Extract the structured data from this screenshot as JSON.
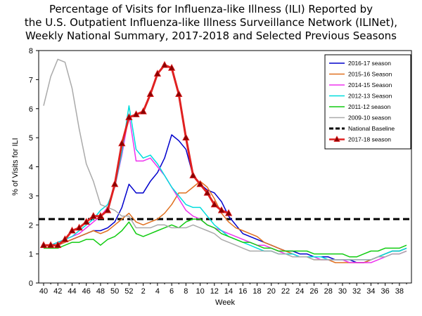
{
  "chart_data": {
    "type": "line",
    "title_lines": [
      "Percentage of Visits for Influenza-like Illness (ILI) Reported by",
      "the U.S. Outpatient Influenza-like Illness Surveillance Network (ILINet),",
      "Weekly National Summary, 2017-2018 and Selected Previous Seasons"
    ],
    "xlabel": "Week",
    "ylabel": "% of Visits for ILI",
    "ylim": [
      0,
      8
    ],
    "yticks": [
      0,
      1,
      2,
      3,
      4,
      5,
      6,
      7,
      8
    ],
    "xtick_labels": [
      "40",
      "42",
      "44",
      "46",
      "48",
      "50",
      "52",
      "2",
      "4",
      "6",
      "8",
      "10",
      "12",
      "14",
      "16",
      "18",
      "20",
      "22",
      "24",
      "26",
      "28",
      "30",
      "32",
      "34",
      "36",
      "38"
    ],
    "x_weeks": [
      40,
      41,
      42,
      43,
      44,
      45,
      46,
      47,
      48,
      49,
      50,
      51,
      52,
      1,
      2,
      3,
      4,
      5,
      6,
      7,
      8,
      9,
      10,
      11,
      12,
      13,
      14,
      15,
      16,
      17,
      18,
      19,
      20,
      21,
      22,
      23,
      24,
      25,
      26,
      27,
      28,
      29,
      30,
      31,
      32,
      33,
      34,
      35,
      36,
      37,
      38,
      39
    ],
    "grid": false,
    "legend_position": "top-right",
    "baseline": {
      "name": "National Baseline",
      "value": 2.2,
      "color": "#000000"
    },
    "series": [
      {
        "name": "2016-17 season",
        "color": "#0000cc",
        "values": [
          1.3,
          1.3,
          1.3,
          1.4,
          1.5,
          1.6,
          1.7,
          1.8,
          1.8,
          1.9,
          2.1,
          2.6,
          3.4,
          3.1,
          3.1,
          3.5,
          3.8,
          4.3,
          5.1,
          4.9,
          4.6,
          3.7,
          3.4,
          3.2,
          3.1,
          2.8,
          2.3,
          2.0,
          1.7,
          1.6,
          1.5,
          1.4,
          1.3,
          1.2,
          1.1,
          1.1,
          1.0,
          1.0,
          0.9,
          0.9,
          0.9,
          0.8,
          0.8,
          0.8,
          0.7,
          0.7,
          0.8,
          0.9,
          1.0,
          1.1,
          1.1,
          1.2
        ]
      },
      {
        "name": "2015-16 Season",
        "color": "#e07020",
        "values": [
          1.3,
          1.3,
          1.3,
          1.4,
          1.5,
          1.6,
          1.7,
          1.8,
          1.7,
          1.8,
          2.0,
          2.2,
          2.4,
          2.1,
          2.0,
          2.1,
          2.2,
          2.4,
          2.7,
          3.1,
          3.1,
          3.3,
          3.5,
          3.3,
          2.9,
          2.4,
          2.1,
          1.9,
          1.8,
          1.7,
          1.6,
          1.4,
          1.3,
          1.2,
          1.1,
          1.0,
          0.9,
          0.9,
          0.8,
          0.8,
          0.8,
          0.7,
          0.7,
          0.7,
          0.7,
          0.7,
          0.8,
          0.9,
          1.0,
          1.1,
          1.1,
          1.2
        ]
      },
      {
        "name": "2014-15 Season",
        "color": "#ee33ee",
        "values": [
          1.3,
          1.3,
          1.4,
          1.5,
          1.6,
          1.7,
          1.9,
          2.1,
          2.3,
          2.6,
          3.3,
          4.4,
          5.8,
          4.2,
          4.2,
          4.3,
          4.0,
          3.7,
          3.3,
          2.9,
          2.5,
          2.3,
          2.2,
          2.0,
          1.9,
          1.8,
          1.7,
          1.6,
          1.5,
          1.4,
          1.3,
          1.3,
          1.2,
          1.1,
          1.0,
          1.0,
          0.9,
          0.9,
          0.9,
          0.8,
          0.8,
          0.8,
          0.8,
          0.7,
          0.7,
          0.7,
          0.7,
          0.8,
          0.9,
          1.0,
          1.0,
          1.1
        ]
      },
      {
        "name": "2012-13 Season",
        "color": "#00dddd",
        "values": [
          1.3,
          1.3,
          1.4,
          1.5,
          1.6,
          1.8,
          2.0,
          2.2,
          2.5,
          2.7,
          3.3,
          4.5,
          6.1,
          4.6,
          4.3,
          4.4,
          4.1,
          3.7,
          3.3,
          3.0,
          2.7,
          2.6,
          2.6,
          2.3,
          2.0,
          1.8,
          1.6,
          1.5,
          1.4,
          1.3,
          1.2,
          1.1,
          1.1,
          1.0,
          1.0,
          1.0,
          0.9,
          0.9,
          0.9,
          0.9,
          0.8,
          0.8,
          0.8,
          0.8,
          0.8,
          0.8,
          0.8,
          0.9,
          1.0,
          1.1,
          1.1,
          1.2
        ]
      },
      {
        "name": "2011-12 season",
        "color": "#11cc11",
        "values": [
          1.2,
          1.2,
          1.2,
          1.3,
          1.4,
          1.4,
          1.5,
          1.5,
          1.3,
          1.5,
          1.6,
          1.8,
          2.1,
          1.7,
          1.6,
          1.7,
          1.8,
          1.9,
          2.0,
          1.9,
          2.1,
          2.2,
          2.2,
          2.0,
          1.9,
          1.7,
          1.6,
          1.5,
          1.4,
          1.4,
          1.3,
          1.2,
          1.2,
          1.1,
          1.1,
          1.1,
          1.1,
          1.1,
          1.0,
          1.0,
          1.0,
          1.0,
          1.0,
          0.9,
          0.9,
          1.0,
          1.1,
          1.1,
          1.2,
          1.2,
          1.2,
          1.3
        ]
      },
      {
        "name": "2009-10 season",
        "color": "#aaaaaa",
        "values": [
          6.1,
          7.1,
          7.7,
          7.6,
          6.7,
          5.3,
          4.1,
          3.5,
          2.7,
          2.6,
          2.5,
          2.3,
          2.3,
          1.9,
          1.9,
          1.9,
          2.0,
          2.0,
          1.9,
          1.9,
          1.9,
          2.0,
          1.9,
          1.8,
          1.7,
          1.5,
          1.4,
          1.3,
          1.2,
          1.1,
          1.1,
          1.1,
          1.1,
          1.0,
          1.0,
          0.9,
          0.9,
          0.9,
          0.8,
          0.8,
          0.8,
          0.8,
          0.8,
          0.8,
          0.8,
          0.8,
          0.8,
          0.9,
          0.9,
          1.0,
          1.0,
          1.1
        ]
      },
      {
        "name": "2017-18 season",
        "color": "#e02020",
        "marker": "triangle",
        "marker_color": "#8b0000",
        "values": [
          1.3,
          1.3,
          1.3,
          1.5,
          1.8,
          1.9,
          2.1,
          2.3,
          2.3,
          2.5,
          3.4,
          4.8,
          5.7,
          5.8,
          5.9,
          6.5,
          7.2,
          7.5,
          7.4,
          6.5,
          5.0,
          3.7,
          3.4,
          3.1,
          2.7,
          2.5,
          2.4
        ]
      }
    ]
  }
}
